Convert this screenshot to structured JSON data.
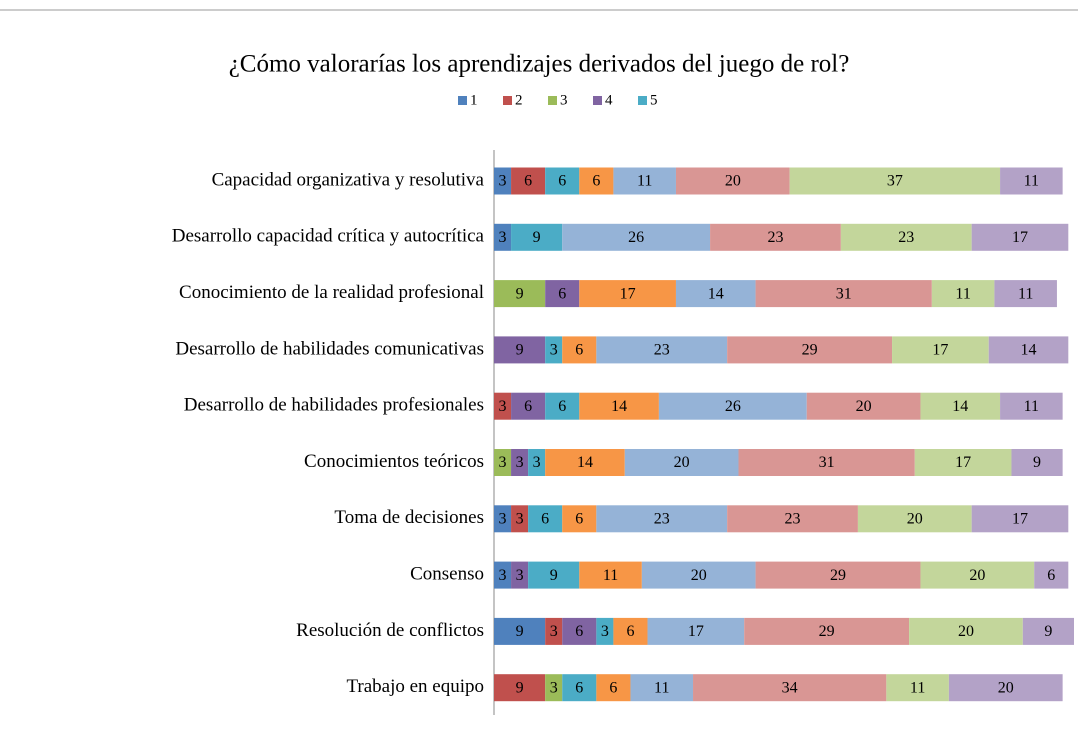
{
  "chart_data": {
    "type": "stacked-bar-horizontal",
    "title": "¿Cómo valorarías los aprendizajes derivados del juego de rol?",
    "categories": [
      "Capacidad organizativa y resolutiva",
      "Desarrollo capacidad crítica y autocrítica",
      "Conocimiento de la realidad profesional",
      "Desarrollo de habilidades comunicativas",
      "Desarrollo de habilidades profesionales",
      "Conocimientos teóricos",
      "Toma de decisiones",
      "Consenso",
      "Resolución de conflictos",
      "Trabajo en equipo"
    ],
    "xlim": [
      0,
      102
    ],
    "series": [
      {
        "name": "1",
        "color": "#4f81bd",
        "values": [
          3,
          3,
          null,
          null,
          null,
          null,
          3,
          3,
          9,
          null
        ]
      },
      {
        "name": "2",
        "color": "#c0504d",
        "values": [
          6,
          null,
          null,
          null,
          3,
          null,
          3,
          null,
          3,
          9
        ]
      },
      {
        "name": "3",
        "color": "#9bbb59",
        "values": [
          null,
          null,
          9,
          null,
          null,
          3,
          null,
          null,
          null,
          3
        ]
      },
      {
        "name": "4",
        "color": "#8064a2",
        "values": [
          null,
          null,
          6,
          9,
          6,
          3,
          null,
          3,
          6,
          null
        ]
      },
      {
        "name": "5",
        "color": "#4bacc6",
        "values": [
          6,
          9,
          null,
          3,
          6,
          3,
          6,
          9,
          3,
          6
        ]
      },
      {
        "color": "#f79646",
        "values": [
          6,
          null,
          17,
          6,
          14,
          14,
          6,
          11,
          6,
          6
        ]
      },
      {
        "color": "#95b3d7",
        "values": [
          11,
          26,
          14,
          23,
          26,
          20,
          23,
          20,
          17,
          11
        ]
      },
      {
        "color": "#d99694",
        "values": [
          20,
          23,
          31,
          29,
          20,
          31,
          23,
          29,
          29,
          34
        ]
      },
      {
        "color": "#c3d69b",
        "values": [
          37,
          23,
          11,
          17,
          14,
          17,
          20,
          20,
          20,
          11
        ]
      },
      {
        "color": "#b3a2c7",
        "values": [
          11,
          17,
          11,
          14,
          11,
          9,
          17,
          6,
          9,
          20
        ]
      }
    ]
  }
}
